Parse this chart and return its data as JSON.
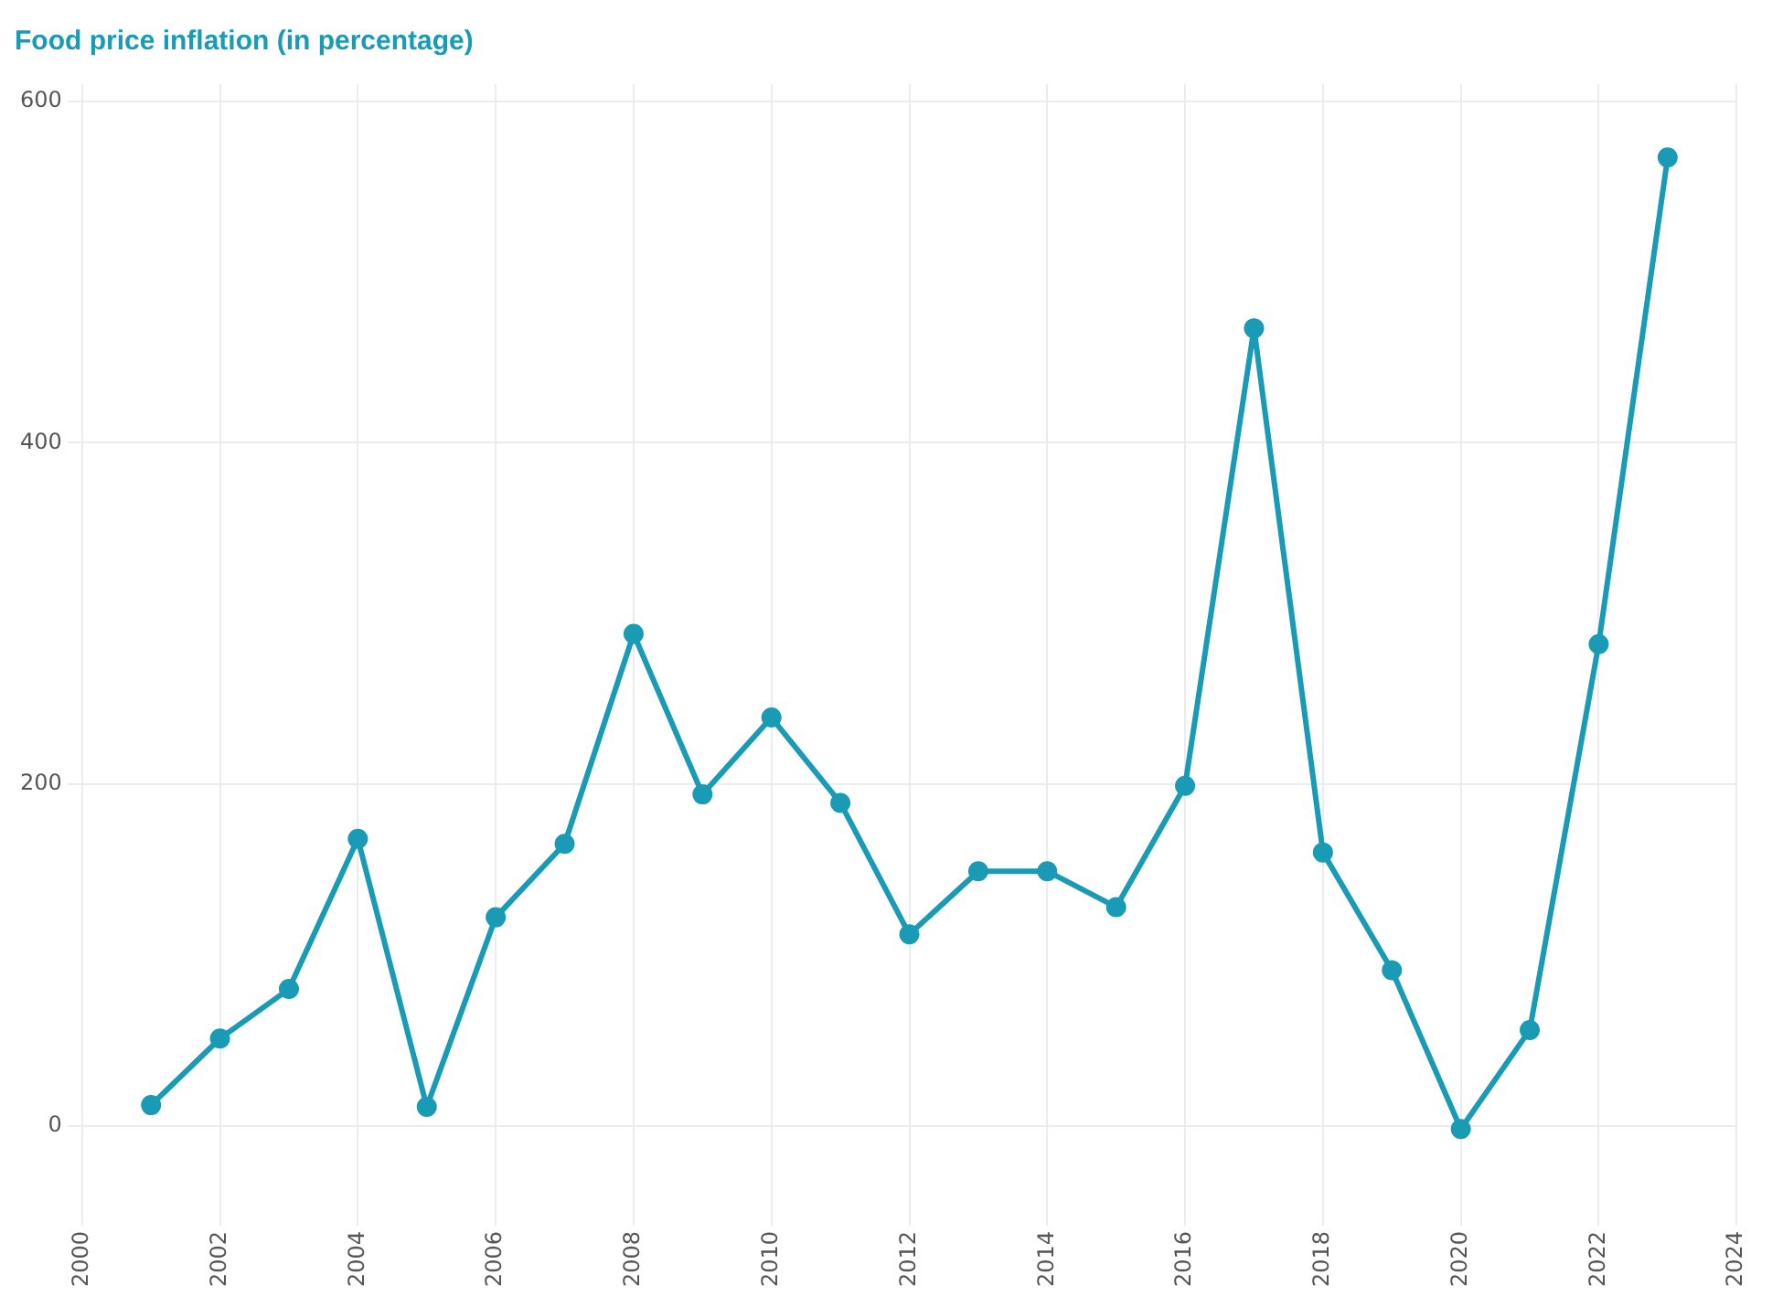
{
  "chart_data": {
    "type": "line",
    "title": "Food price inflation (in percentage)",
    "x": [
      2001,
      2002,
      2003,
      2004,
      2005,
      2006,
      2007,
      2008,
      2009,
      2010,
      2011,
      2012,
      2013,
      2014,
      2015,
      2016,
      2017,
      2018,
      2019,
      2020,
      2021,
      2022,
      2023
    ],
    "series": [
      {
        "color": "#1a9bb5",
        "values": [
          12,
          51,
          80,
          168,
          11,
          122,
          165,
          288,
          194,
          239,
          189,
          112,
          149,
          149,
          128,
          199,
          467,
          160,
          91,
          -2,
          56,
          282,
          567
        ]
      }
    ],
    "xlim": [
      2000,
      2024
    ],
    "xticks": [
      2000,
      2002,
      2004,
      2006,
      2008,
      2010,
      2012,
      2014,
      2016,
      2018,
      2020,
      2022,
      2024
    ],
    "ylim": [
      -50,
      610
    ],
    "yticks": [
      0,
      200,
      400,
      600
    ],
    "grid": true,
    "marker": "circle",
    "line_style": "solid"
  }
}
